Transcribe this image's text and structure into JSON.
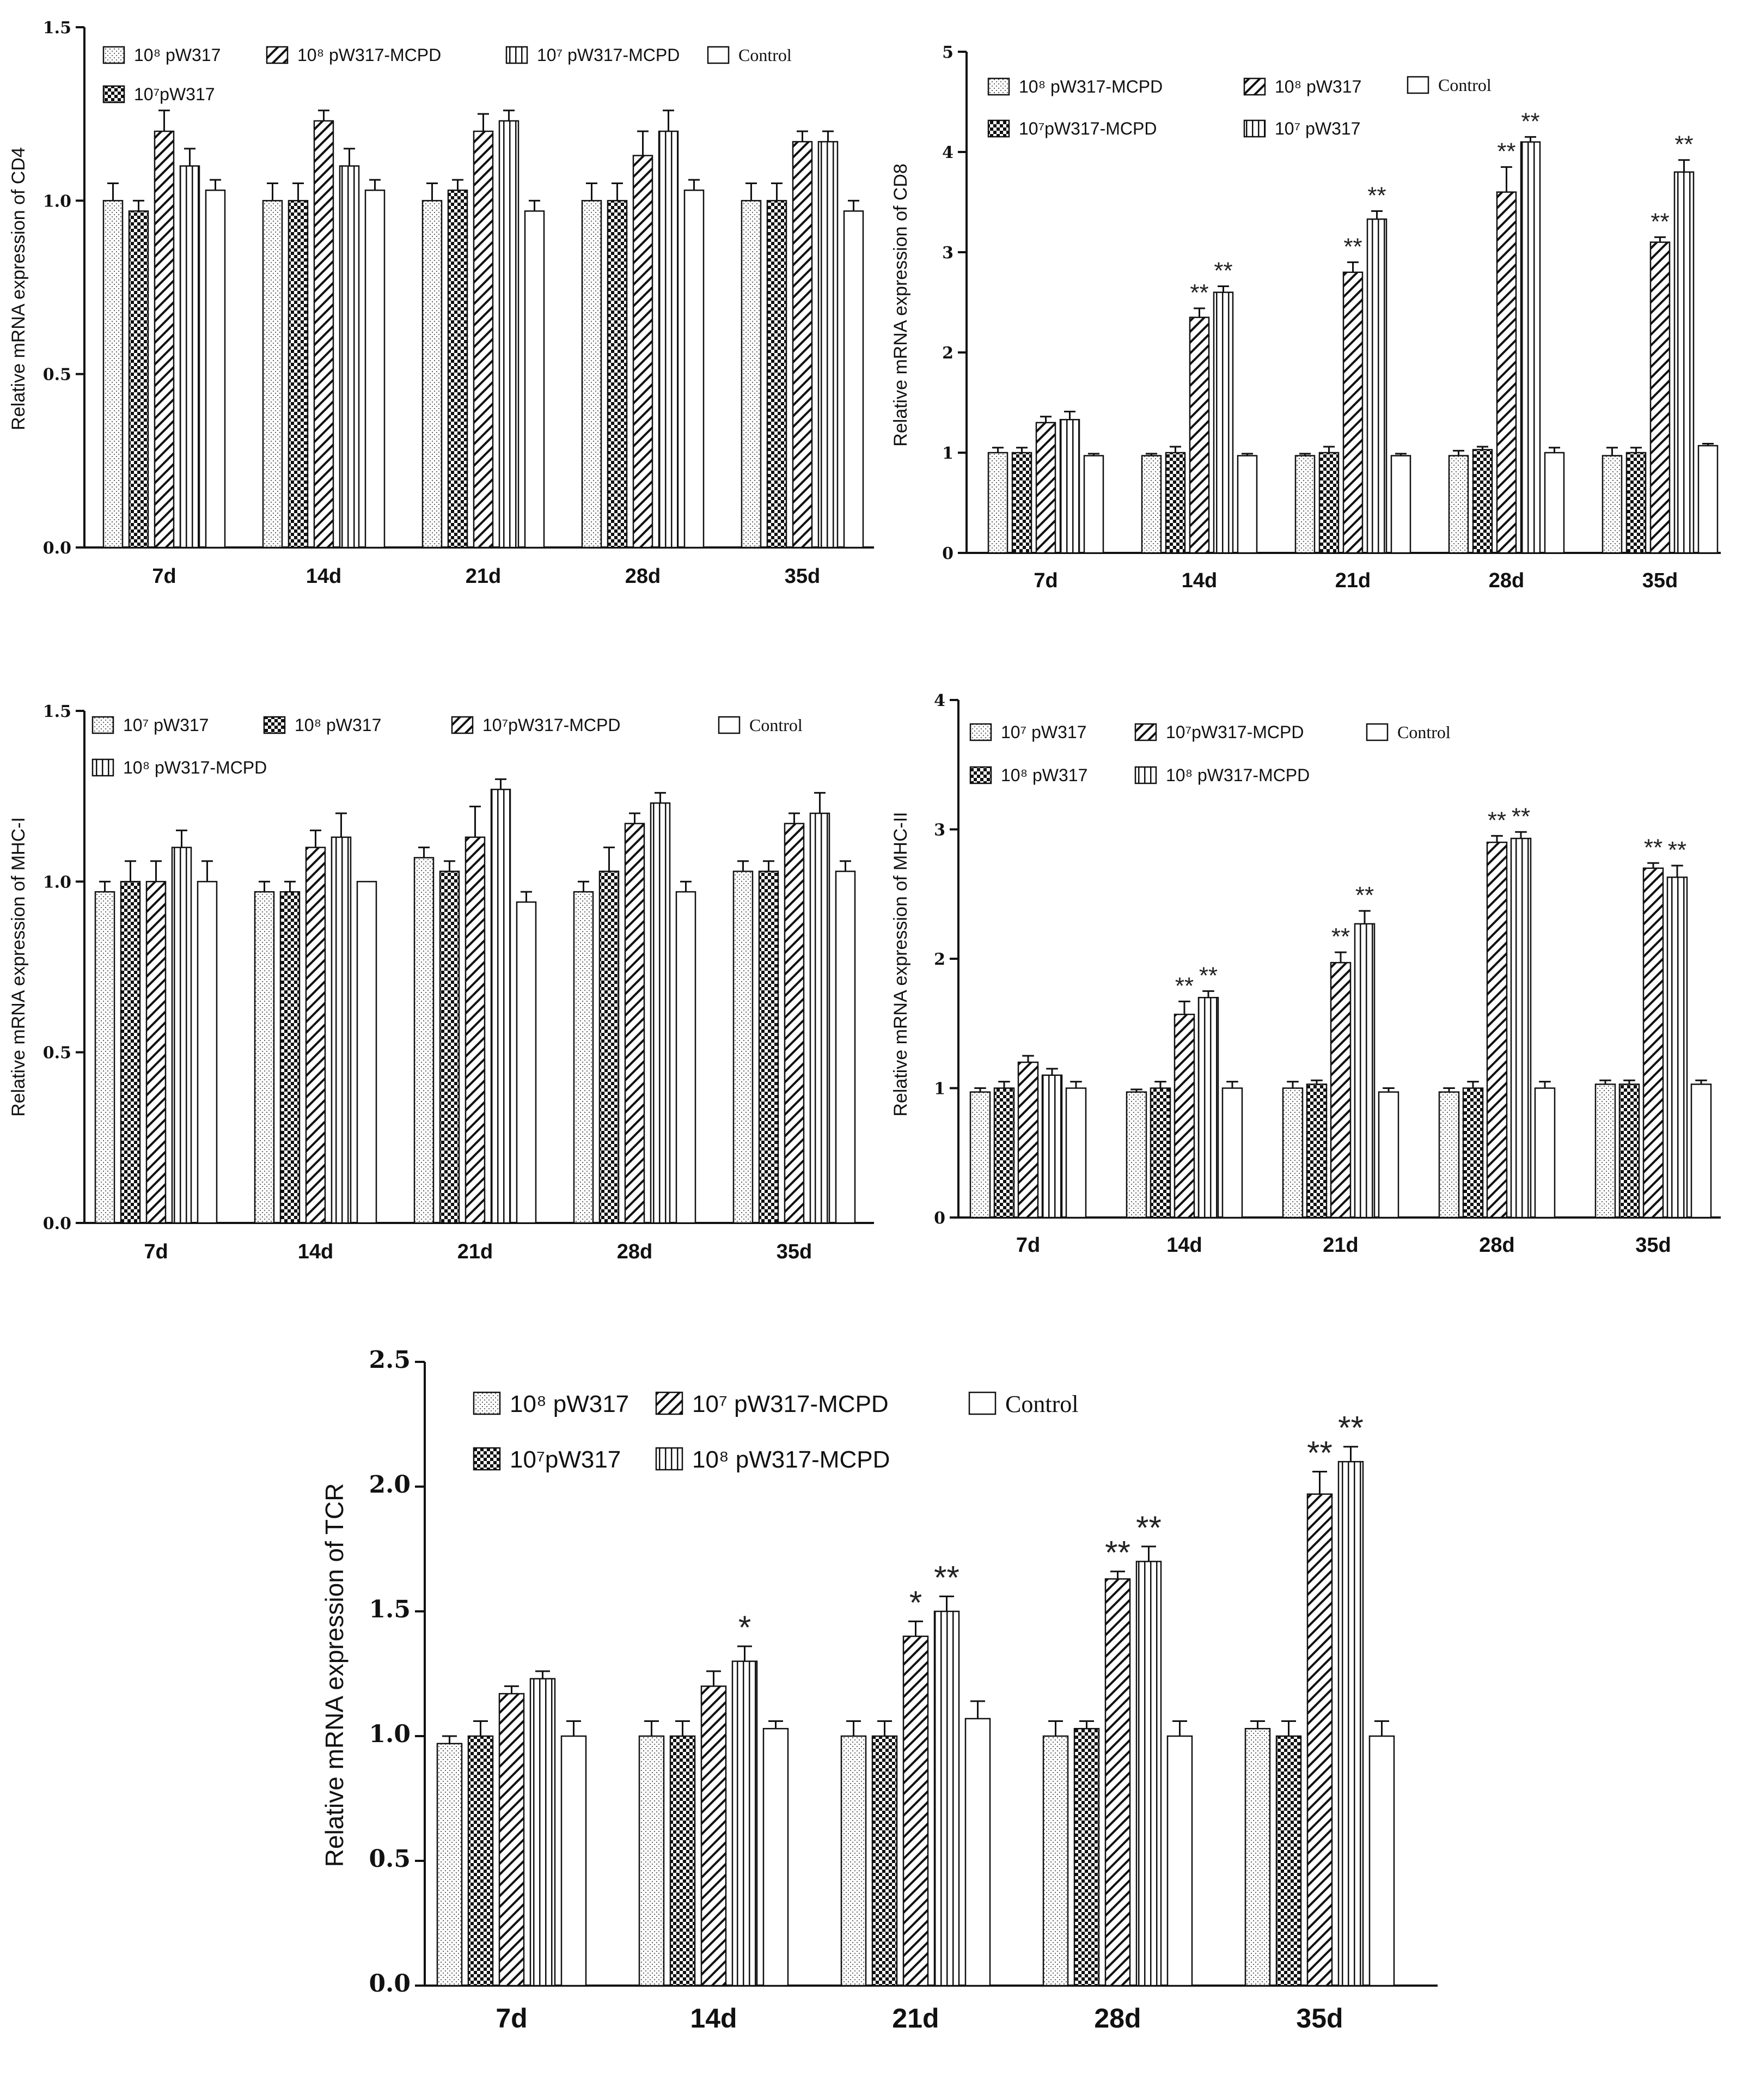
{
  "figure": {
    "panels": 5
  },
  "colors": {
    "ink": "#111111",
    "background": "#ffffff"
  },
  "chart_data": [
    {
      "id": "cd4",
      "type": "bar",
      "ylabel": "Relative mRNA expression of CD4",
      "ylim": [
        0,
        1.5
      ],
      "yticks": [
        "0.0",
        "0.5",
        "1.0",
        "1.5"
      ],
      "ytick_values": [
        0,
        0.5,
        1.0,
        1.5
      ],
      "categories": [
        "7d",
        "14d",
        "21d",
        "28d",
        "35d"
      ],
      "legend": [
        "10⁸ pW317",
        "10⁸ pW317-MCPD",
        "10⁷ pW317-MCPD",
        "Control",
        "10⁷pW317"
      ],
      "legend_patterns": [
        "dots",
        "diag",
        "vert",
        "plain",
        "check"
      ],
      "series": [
        {
          "name": "10⁸ pW317",
          "pattern": "dots",
          "values": [
            1.0,
            1.0,
            1.0,
            1.0,
            1.0
          ],
          "errors": [
            0.05,
            0.05,
            0.05,
            0.05,
            0.05
          ],
          "sig": [
            "",
            "",
            "",
            "",
            ""
          ]
        },
        {
          "name": "10⁷pW317",
          "pattern": "check",
          "values": [
            0.97,
            1.0,
            1.03,
            1.0,
            1.0
          ],
          "errors": [
            0.03,
            0.05,
            0.03,
            0.05,
            0.05
          ],
          "sig": [
            "",
            "",
            "",
            "",
            ""
          ]
        },
        {
          "name": "10⁸ pW317-MCPD",
          "pattern": "diag",
          "values": [
            1.2,
            1.23,
            1.2,
            1.13,
            1.17
          ],
          "errors": [
            0.06,
            0.03,
            0.05,
            0.07,
            0.03
          ],
          "sig": [
            "",
            "",
            "",
            "",
            ""
          ]
        },
        {
          "name": "10⁷ pW317-MCPD",
          "pattern": "vert",
          "values": [
            1.1,
            1.1,
            1.23,
            1.2,
            1.17
          ],
          "errors": [
            0.05,
            0.05,
            0.03,
            0.06,
            0.03
          ],
          "sig": [
            "",
            "",
            "",
            "",
            ""
          ]
        },
        {
          "name": "Control",
          "pattern": "plain",
          "values": [
            1.03,
            1.03,
            0.97,
            1.03,
            0.97
          ],
          "errors": [
            0.03,
            0.03,
            0.03,
            0.03,
            0.03
          ],
          "sig": [
            "",
            "",
            "",
            "",
            ""
          ]
        }
      ]
    },
    {
      "id": "cd8",
      "type": "bar",
      "ylabel": "Relative mRNA expression of CD8",
      "ylim": [
        0,
        5
      ],
      "yticks": [
        "0",
        "1",
        "2",
        "3",
        "4",
        "5"
      ],
      "ytick_values": [
        0,
        1,
        2,
        3,
        4,
        5
      ],
      "categories": [
        "7d",
        "14d",
        "21d",
        "28d",
        "35d"
      ],
      "legend": [
        "10⁸ pW317-MCPD",
        "10⁸ pW317",
        "Control",
        "10⁷pW317-MCPD",
        "10⁷ pW317"
      ],
      "legend_patterns": [
        "dots",
        "diag",
        "plain",
        "check",
        "vert"
      ],
      "series": [
        {
          "name": "10⁸ pW317-MCPD",
          "pattern": "dots",
          "values": [
            1.0,
            0.97,
            0.97,
            0.97,
            0.97
          ],
          "errors": [
            0.05,
            0.02,
            0.02,
            0.05,
            0.08
          ],
          "sig": [
            "",
            "",
            "",
            "",
            ""
          ]
        },
        {
          "name": "10⁷pW317-MCPD",
          "pattern": "check",
          "values": [
            1.0,
            1.0,
            1.0,
            1.03,
            1.0
          ],
          "errors": [
            0.05,
            0.06,
            0.06,
            0.03,
            0.05
          ],
          "sig": [
            "",
            "",
            "",
            "",
            ""
          ]
        },
        {
          "name": "10⁸ pW317",
          "pattern": "diag",
          "values": [
            1.3,
            2.35,
            2.8,
            3.6,
            3.1
          ],
          "errors": [
            0.06,
            0.09,
            0.1,
            0.25,
            0.05
          ],
          "sig": [
            "",
            "**",
            "**",
            "**",
            "**"
          ]
        },
        {
          "name": "10⁷ pW317",
          "pattern": "vert",
          "values": [
            1.33,
            2.6,
            3.33,
            4.1,
            3.8
          ],
          "errors": [
            0.08,
            0.06,
            0.08,
            0.05,
            0.12
          ],
          "sig": [
            "",
            "**",
            "**",
            "**",
            "**"
          ]
        },
        {
          "name": "Control",
          "pattern": "plain",
          "values": [
            0.97,
            0.97,
            0.97,
            1.0,
            1.07
          ],
          "errors": [
            0.02,
            0.02,
            0.02,
            0.05,
            0.02
          ],
          "sig": [
            "",
            "",
            "",
            "",
            ""
          ]
        }
      ]
    },
    {
      "id": "mhc1",
      "type": "bar",
      "ylabel": "Relative mRNA expression of MHC-I",
      "ylim": [
        0,
        1.5
      ],
      "yticks": [
        "0.0",
        "0.5",
        "1.0",
        "1.5"
      ],
      "ytick_values": [
        0,
        0.5,
        1.0,
        1.5
      ],
      "categories": [
        "7d",
        "14d",
        "21d",
        "28d",
        "35d"
      ],
      "legend": [
        "10⁷ pW317",
        "10⁸ pW317",
        "10⁷pW317-MCPD",
        "Control",
        "10⁸ pW317-MCPD"
      ],
      "legend_patterns": [
        "dots",
        "check",
        "diag",
        "plain",
        "vert"
      ],
      "series": [
        {
          "name": "10⁷ pW317",
          "pattern": "dots",
          "values": [
            0.97,
            0.97,
            1.07,
            0.97,
            1.03
          ],
          "errors": [
            0.03,
            0.03,
            0.03,
            0.03,
            0.03
          ],
          "sig": [
            "",
            "",
            "",
            "",
            ""
          ]
        },
        {
          "name": "10⁸ pW317",
          "pattern": "check",
          "values": [
            1.0,
            0.97,
            1.03,
            1.03,
            1.03
          ],
          "errors": [
            0.06,
            0.03,
            0.03,
            0.07,
            0.03
          ],
          "sig": [
            "",
            "",
            "",
            "",
            ""
          ]
        },
        {
          "name": "10⁷pW317-MCPD",
          "pattern": "diag",
          "values": [
            1.0,
            1.1,
            1.13,
            1.17,
            1.17
          ],
          "errors": [
            0.06,
            0.05,
            0.09,
            0.03,
            0.03
          ],
          "sig": [
            "",
            "",
            "",
            "",
            ""
          ]
        },
        {
          "name": "10⁸ pW317-MCPD",
          "pattern": "vert",
          "values": [
            1.1,
            1.13,
            1.27,
            1.23,
            1.2
          ],
          "errors": [
            0.05,
            0.07,
            0.03,
            0.03,
            0.06
          ],
          "sig": [
            "",
            "",
            "",
            "",
            ""
          ]
        },
        {
          "name": "Control",
          "pattern": "plain",
          "values": [
            1.0,
            1.0,
            0.94,
            0.97,
            1.03
          ],
          "errors": [
            0.06,
            0.0,
            0.03,
            0.03,
            0.03
          ],
          "sig": [
            "",
            "",
            "",
            "",
            ""
          ]
        }
      ]
    },
    {
      "id": "mhc2",
      "type": "bar",
      "ylabel": "Relative mRNA expression of MHC-II",
      "ylim": [
        0,
        4
      ],
      "yticks": [
        "0",
        "1",
        "2",
        "3",
        "4"
      ],
      "ytick_values": [
        0,
        1,
        2,
        3,
        4
      ],
      "categories": [
        "7d",
        "14d",
        "21d",
        "28d",
        "35d"
      ],
      "legend": [
        "10⁷ pW317",
        "10⁷pW317-MCPD",
        "Control",
        "10⁸ pW317",
        "10⁸ pW317-MCPD"
      ],
      "legend_patterns": [
        "dots",
        "diag",
        "plain",
        "check",
        "vert"
      ],
      "series": [
        {
          "name": "10⁷ pW317",
          "pattern": "dots",
          "values": [
            0.97,
            0.97,
            1.0,
            0.97,
            1.03
          ],
          "errors": [
            0.03,
            0.02,
            0.05,
            0.03,
            0.03
          ],
          "sig": [
            "",
            "",
            "",
            "",
            ""
          ]
        },
        {
          "name": "10⁸ pW317",
          "pattern": "check",
          "values": [
            1.0,
            1.0,
            1.03,
            1.0,
            1.03
          ],
          "errors": [
            0.05,
            0.05,
            0.03,
            0.05,
            0.03
          ],
          "sig": [
            "",
            "",
            "",
            "",
            ""
          ]
        },
        {
          "name": "10⁷pW317-MCPD",
          "pattern": "diag",
          "values": [
            1.2,
            1.57,
            1.97,
            2.9,
            2.7
          ],
          "errors": [
            0.05,
            0.1,
            0.08,
            0.05,
            0.04
          ],
          "sig": [
            "",
            "**",
            "**",
            "**",
            "**"
          ]
        },
        {
          "name": "10⁸ pW317-MCPD",
          "pattern": "vert",
          "values": [
            1.1,
            1.7,
            2.27,
            2.93,
            2.63
          ],
          "errors": [
            0.05,
            0.05,
            0.1,
            0.05,
            0.09
          ],
          "sig": [
            "",
            "**",
            "**",
            "**",
            "**"
          ]
        },
        {
          "name": "Control",
          "pattern": "plain",
          "values": [
            1.0,
            1.0,
            0.97,
            1.0,
            1.03
          ],
          "errors": [
            0.05,
            0.05,
            0.03,
            0.05,
            0.03
          ],
          "sig": [
            "",
            "",
            "",
            "",
            ""
          ]
        }
      ]
    },
    {
      "id": "tcr",
      "type": "bar",
      "ylabel": "Relative mRNA expression of TCR",
      "ylim": [
        0,
        2.5
      ],
      "yticks": [
        "0.0",
        "0.5",
        "1.0",
        "1.5",
        "2.0",
        "2.5"
      ],
      "ytick_values": [
        0,
        0.5,
        1.0,
        1.5,
        2.0,
        2.5
      ],
      "categories": [
        "7d",
        "14d",
        "21d",
        "28d",
        "35d"
      ],
      "legend": [
        "10⁸ pW317",
        "10⁷ pW317-MCPD",
        "Control",
        "10⁷pW317",
        "10⁸ pW317-MCPD"
      ],
      "legend_patterns": [
        "dots",
        "diag",
        "plain",
        "check",
        "vert"
      ],
      "series": [
        {
          "name": "10⁸ pW317",
          "pattern": "dots",
          "values": [
            0.97,
            1.0,
            1.0,
            1.0,
            1.03
          ],
          "errors": [
            0.03,
            0.06,
            0.06,
            0.06,
            0.03
          ],
          "sig": [
            "",
            "",
            "",
            "",
            ""
          ]
        },
        {
          "name": "10⁷pW317",
          "pattern": "check",
          "values": [
            1.0,
            1.0,
            1.0,
            1.03,
            1.0
          ],
          "errors": [
            0.06,
            0.06,
            0.06,
            0.03,
            0.06
          ],
          "sig": [
            "",
            "",
            "",
            "",
            ""
          ]
        },
        {
          "name": "10⁷ pW317-MCPD",
          "pattern": "diag",
          "values": [
            1.17,
            1.2,
            1.4,
            1.63,
            1.97
          ],
          "errors": [
            0.03,
            0.06,
            0.06,
            0.03,
            0.09
          ],
          "sig": [
            "",
            "",
            "*",
            "**",
            "**"
          ]
        },
        {
          "name": "10⁸ pW317-MCPD",
          "pattern": "vert",
          "values": [
            1.23,
            1.3,
            1.5,
            1.7,
            2.1
          ],
          "errors": [
            0.03,
            0.06,
            0.06,
            0.06,
            0.06
          ],
          "sig": [
            "",
            "*",
            "**",
            "**",
            "**"
          ]
        },
        {
          "name": "Control",
          "pattern": "plain",
          "values": [
            1.0,
            1.03,
            1.07,
            1.0,
            1.0
          ],
          "errors": [
            0.06,
            0.03,
            0.07,
            0.06,
            0.06
          ],
          "sig": [
            "",
            "",
            "",
            "",
            ""
          ]
        }
      ]
    }
  ]
}
